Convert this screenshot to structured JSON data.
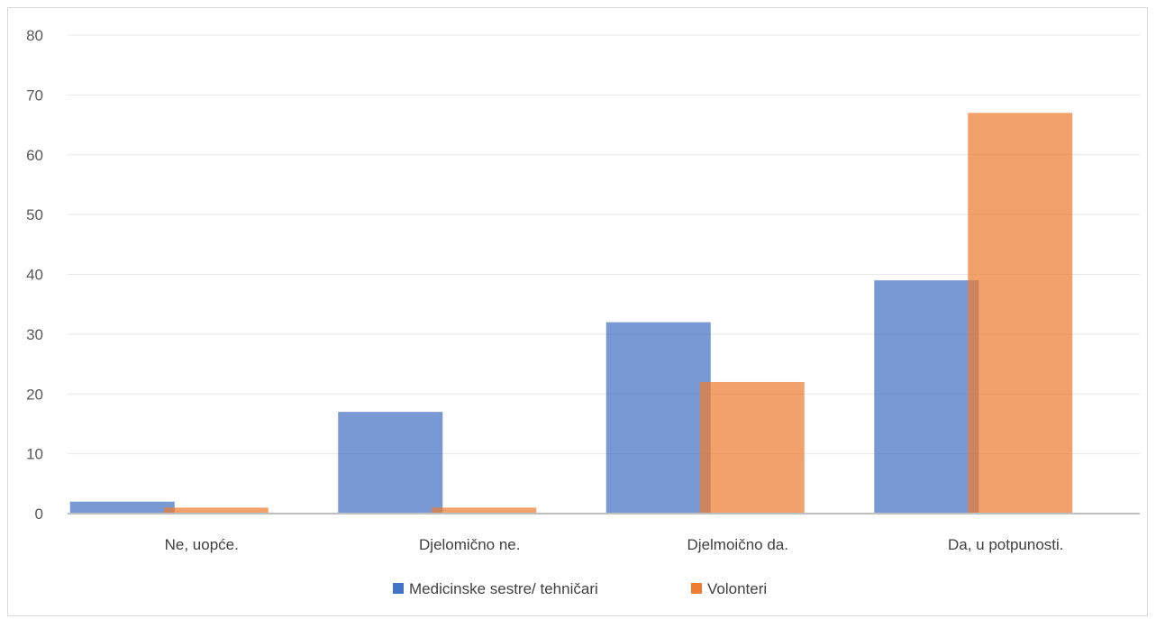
{
  "chart_data": {
    "type": "bar",
    "title": "",
    "xlabel": "",
    "ylabel": "",
    "categories": [
      "Ne, uopće.",
      "Djelomično ne.",
      "Djelmoično da.",
      "Da, u potpunosti."
    ],
    "series": [
      {
        "name": "Medicinske sestre/ tehničari",
        "values": [
          2,
          17,
          32,
          39
        ],
        "color": "#4472c4"
      },
      {
        "name": "Volonteri",
        "values": [
          1,
          1,
          22,
          67
        ],
        "color": "#ed7d31"
      }
    ],
    "ylim": [
      0,
      80
    ],
    "yticks": [
      "0",
      "10",
      "20",
      "30",
      "40",
      "50",
      "60",
      "70",
      "80"
    ],
    "grid": true,
    "legend_position": "bottom"
  }
}
